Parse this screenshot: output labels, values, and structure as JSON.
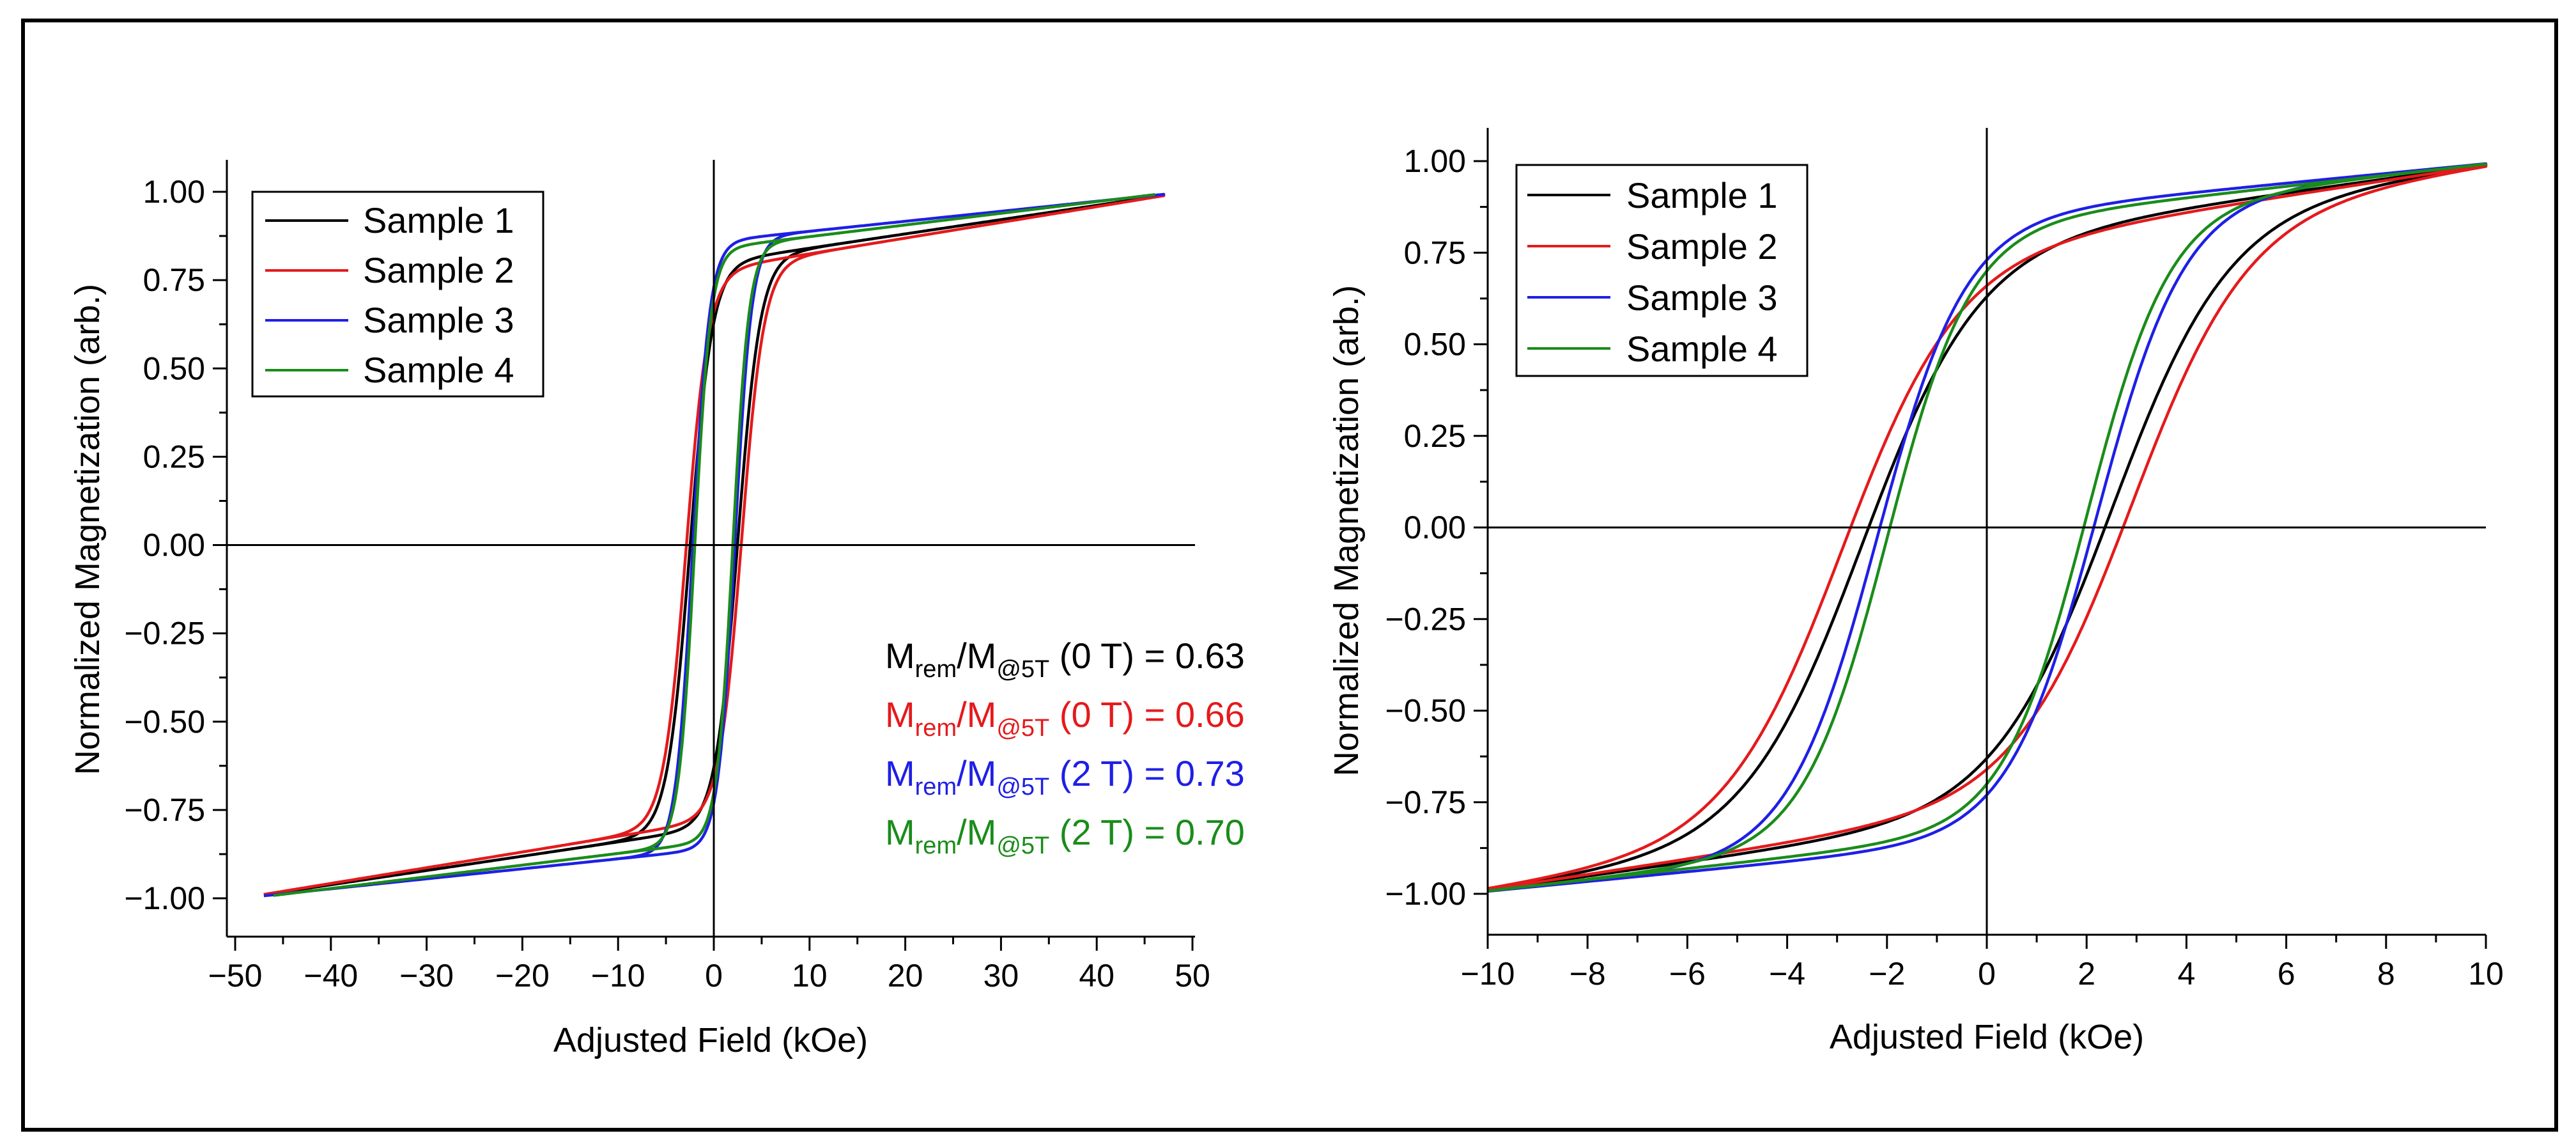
{
  "colors": {
    "sample1": "#000000",
    "sample2": "#e41a1c",
    "sample3": "#1f1fe6",
    "sample4": "#1a8c1a",
    "axis": "#000000",
    "frame": "#000000"
  },
  "chart_data": [
    {
      "type": "line",
      "title": "",
      "xlabel": "Adjusted Field (kOe)",
      "ylabel": "Normalized Magnetization (arb.)",
      "xlim": [
        -52,
        52
      ],
      "ylim": [
        -1.1,
        1.1
      ],
      "xticks": [
        -50,
        -40,
        -30,
        -20,
        -10,
        0,
        10,
        20,
        30,
        40,
        50
      ],
      "xtick_labels": [
        "−50",
        "−40",
        "−30",
        "−20",
        "−10",
        "0",
        "10",
        "20",
        "30",
        "40",
        "50"
      ],
      "yticks": [
        -1.0,
        -0.75,
        -0.5,
        -0.25,
        0.0,
        0.25,
        0.5,
        0.75,
        1.0
      ],
      "ytick_labels": [
        "−1.00",
        "−0.75",
        "−0.50",
        "−0.25",
        "0.00",
        "0.25",
        "0.50",
        "0.75",
        "1.00"
      ],
      "grid": false,
      "legend_position": "top-left",
      "legend": [
        "Sample 1",
        "Sample 2",
        "Sample 3",
        "Sample 4"
      ],
      "series": [
        {
          "name": "Sample 1",
          "Hc": 2.5,
          "Mr": 0.63,
          "Msat": 0.8,
          "Hmax": 47
        },
        {
          "name": "Sample 2",
          "Hc": 2.9,
          "Mr": 0.66,
          "Msat": 0.78,
          "Hmax": 47
        },
        {
          "name": "Sample 3",
          "Hc": 2.2,
          "Mr": 0.73,
          "Msat": 0.86,
          "Hmax": 47
        },
        {
          "name": "Sample 4",
          "Hc": 2.0,
          "Mr": 0.7,
          "Msat": 0.84,
          "Hmax": 46
        }
      ],
      "annotations": [
        {
          "main": "M",
          "sub1": "rem",
          "mid": "/M",
          "sub2": "@5T",
          "rest": " (0 T) = 0.63",
          "color_key": "sample1"
        },
        {
          "main": "M",
          "sub1": "rem",
          "mid": "/M",
          "sub2": "@5T",
          "rest": " (0 T) = 0.66",
          "color_key": "sample2"
        },
        {
          "main": "M",
          "sub1": "rem",
          "mid": "/M",
          "sub2": "@5T",
          "rest": " (2 T) = 0.73",
          "color_key": "sample3"
        },
        {
          "main": "M",
          "sub1": "rem",
          "mid": "/M",
          "sub2": "@5T",
          "rest": " (2 T) = 0.70",
          "color_key": "sample4"
        }
      ]
    },
    {
      "type": "line",
      "title": "",
      "xlabel": "Adjusted Field (kOe)",
      "ylabel": "Normalized Magnetization (arb.)",
      "xlim": [
        -10,
        10
      ],
      "ylim": [
        -1.1,
        1.1
      ],
      "xticks": [
        -10,
        -8,
        -6,
        -4,
        -2,
        0,
        2,
        4,
        6,
        8,
        10
      ],
      "xtick_labels": [
        "−10",
        "−8",
        "−6",
        "−4",
        "−2",
        "0",
        "2",
        "4",
        "6",
        "8",
        "10"
      ],
      "yticks": [
        -1.0,
        -0.75,
        -0.5,
        -0.25,
        0.0,
        0.25,
        0.5,
        0.75,
        1.0
      ],
      "ytick_labels": [
        "−1.00",
        "−0.75",
        "−0.50",
        "−0.25",
        "0.00",
        "0.25",
        "0.50",
        "0.75",
        "1.00"
      ],
      "grid": false,
      "legend_position": "top-left",
      "legend": [
        "Sample 1",
        "Sample 2",
        "Sample 3",
        "Sample 4"
      ],
      "series": [
        {
          "name": "Sample 1",
          "Hc": 2.5,
          "Mr": 0.63,
          "Msat": 0.8,
          "Hmax": 10
        },
        {
          "name": "Sample 2",
          "Hc": 2.9,
          "Mr": 0.66,
          "Msat": 0.78,
          "Hmax": 10
        },
        {
          "name": "Sample 3",
          "Hc": 2.2,
          "Mr": 0.73,
          "Msat": 0.86,
          "Hmax": 10
        },
        {
          "name": "Sample 4",
          "Hc": 2.0,
          "Mr": 0.7,
          "Msat": 0.84,
          "Hmax": 10
        }
      ]
    }
  ]
}
